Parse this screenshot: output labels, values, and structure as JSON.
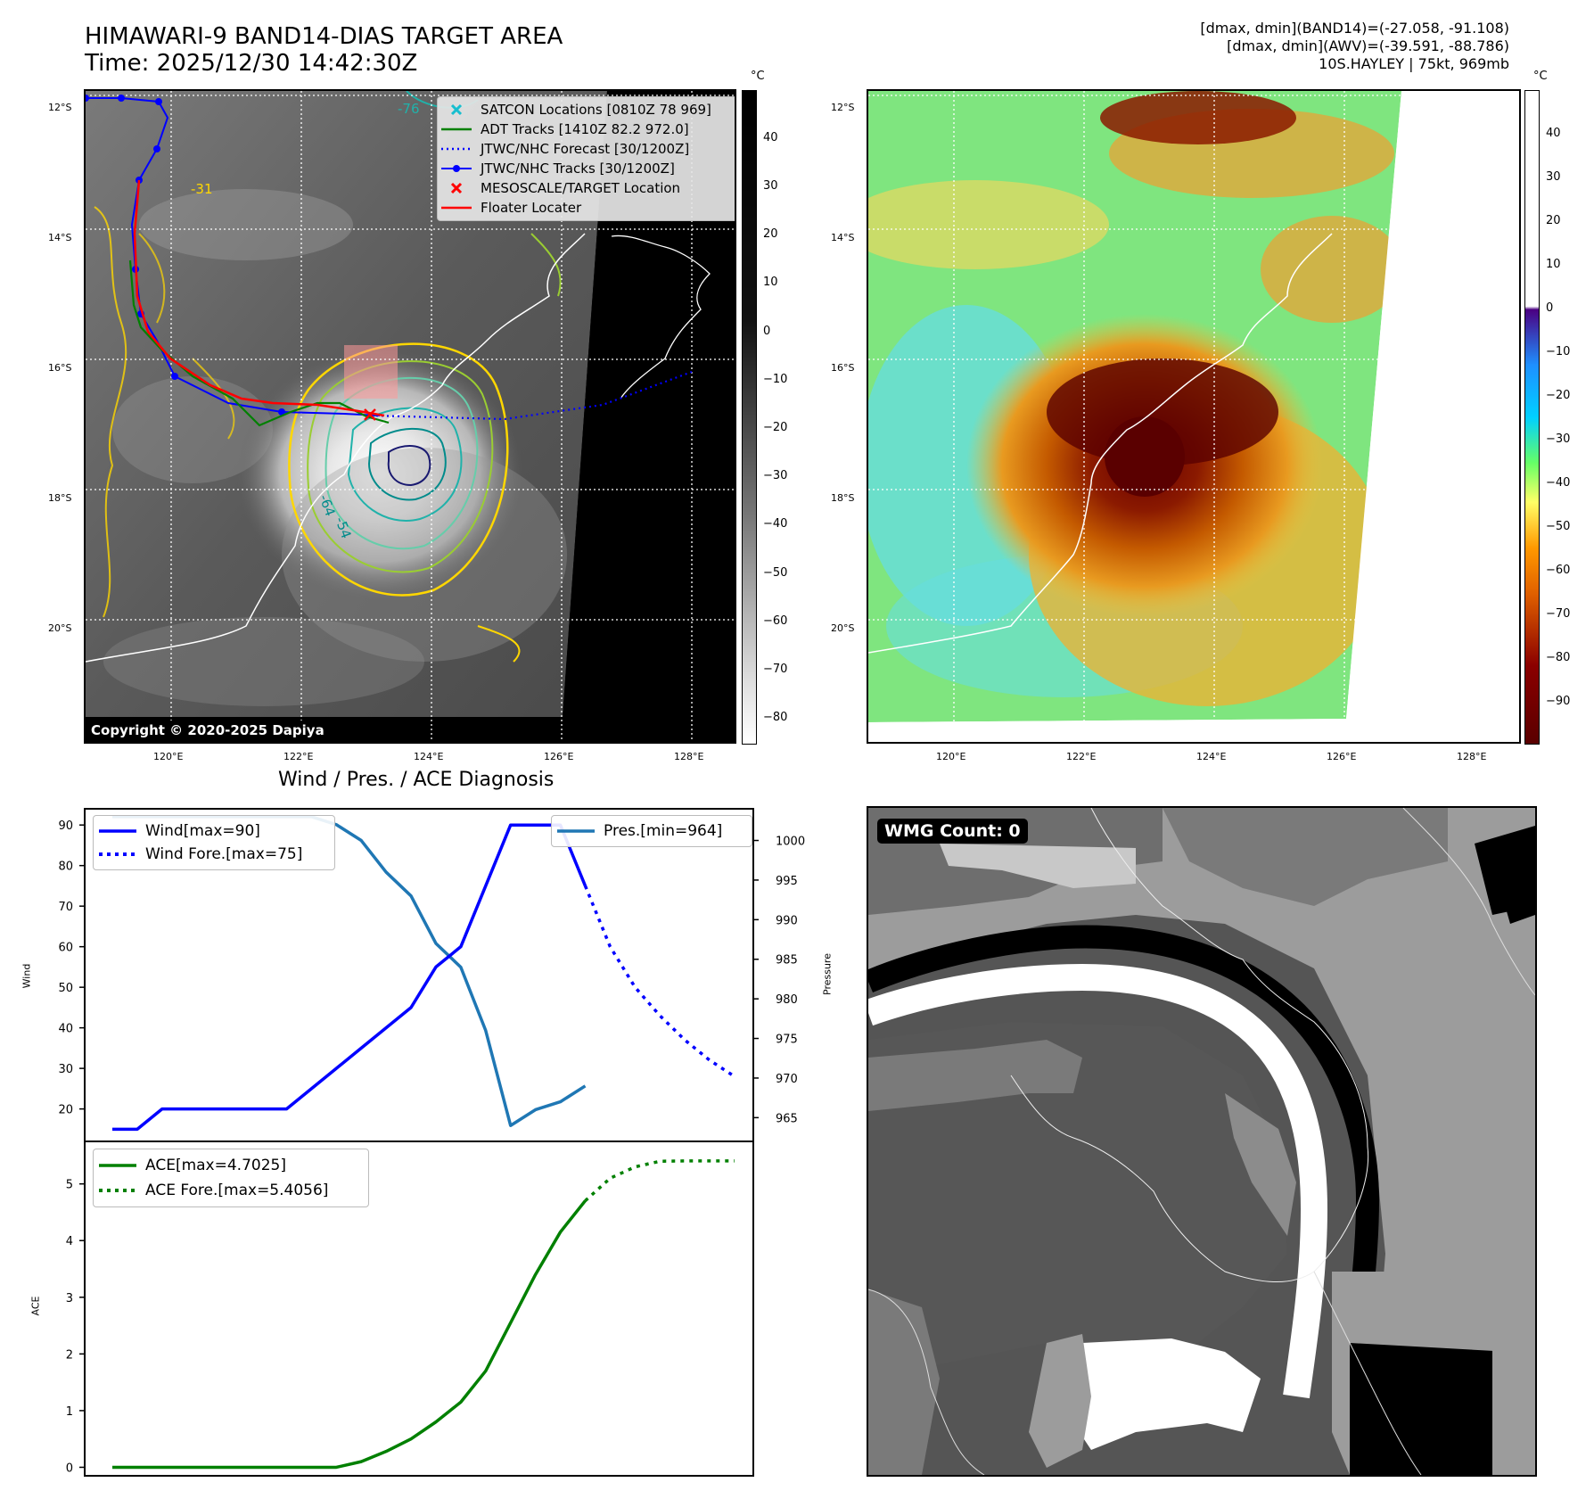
{
  "header": {
    "title_line1": "HIMAWARI-9 BAND14-DIAS TARGET AREA",
    "title_line2": "Time: 2025/12/30 14:42:30Z",
    "stats_line1": "[dmax, dmin](BAND14)=(-27.058, -91.108)",
    "stats_line2": "[dmax, dmin](AWV)=(-39.591, -88.786)",
    "stats_line3": "10S.HAYLEY | 75kt, 969mb"
  },
  "map": {
    "lat_labels": [
      "12°S",
      "14°S",
      "16°S",
      "18°S",
      "20°S"
    ],
    "lon_labels": [
      "120°E",
      "122°E",
      "124°E",
      "126°E",
      "128°E"
    ],
    "copyright": "Copyright © 2020-2025 Dapiya",
    "contour_labels": [
      "-76",
      "-31",
      "-64",
      "-54"
    ],
    "legend": [
      {
        "label": "SATCON Locations [0810Z 78 969]",
        "color": "#17becf",
        "symbol": "x"
      },
      {
        "label": "ADT Tracks [1410Z 82.2 972.0]",
        "color": "#008000",
        "symbol": "line"
      },
      {
        "label": "JTWC/NHC Forecast [30/1200Z]",
        "color": "#0000ff",
        "symbol": "dotted"
      },
      {
        "label": "JTWC/NHC Tracks [30/1200Z]",
        "color": "#0000ff",
        "symbol": "line-dot"
      },
      {
        "label": "MESOSCALE/TARGET Location",
        "color": "#ff0000",
        "symbol": "x"
      },
      {
        "label": "Floater Locater",
        "color": "#ff0000",
        "symbol": "line"
      }
    ]
  },
  "colorbar1": {
    "unit": "°C",
    "ticks": [
      "40",
      "30",
      "20",
      "10",
      "0",
      "−10",
      "−20",
      "−30",
      "−40",
      "−50",
      "−60",
      "−70",
      "−80"
    ]
  },
  "colorbar2": {
    "unit": "°C",
    "ticks": [
      "40",
      "30",
      "20",
      "10",
      "0",
      "−10",
      "−20",
      "−30",
      "−40",
      "−50",
      "−60",
      "−70",
      "−80",
      "−90"
    ]
  },
  "wmg": {
    "label": "WMG Count: 0"
  },
  "chart_data": [
    {
      "type": "line",
      "title": "Wind / Pres. / ACE Diagnosis",
      "ylabel": "Wind",
      "ylabel_right": "Pressure",
      "ylim": [
        12,
        94
      ],
      "ylim_right": [
        962,
        1004
      ],
      "y_ticks": [
        20,
        30,
        40,
        50,
        60,
        70,
        80,
        90
      ],
      "y_ticks_right": [
        965,
        970,
        975,
        980,
        985,
        990,
        995,
        1000
      ],
      "series": [
        {
          "name": "Wind[max=90]",
          "color": "#0000ff",
          "style": "solid",
          "x": [
            0,
            1,
            2,
            3,
            4,
            5,
            6,
            7,
            8,
            9,
            10,
            11,
            12,
            13,
            14,
            15,
            16,
            17,
            18,
            19
          ],
          "values": [
            15,
            15,
            20,
            20,
            20,
            20,
            20,
            20,
            25,
            30,
            35,
            40,
            45,
            55,
            60,
            75,
            90,
            90,
            90,
            75
          ]
        },
        {
          "name": "Wind Fore.[max=75]",
          "color": "#0000ff",
          "style": "dotted",
          "x": [
            19,
            20,
            21,
            22,
            23,
            24,
            25
          ],
          "values": [
            75,
            60,
            50,
            43,
            37,
            32,
            28
          ]
        },
        {
          "name": "Pres.[min=964]",
          "color": "#1f77b4",
          "style": "solid",
          "axis": "right",
          "x": [
            0,
            1,
            2,
            3,
            4,
            5,
            6,
            7,
            8,
            9,
            10,
            11,
            12,
            13,
            14,
            15,
            16,
            17,
            18,
            19
          ],
          "values": [
            1003,
            1003,
            1003,
            1003,
            1003,
            1003,
            1003,
            1003,
            1003,
            1002,
            1000,
            996,
            993,
            987,
            984,
            976,
            964,
            966,
            967,
            969
          ]
        }
      ]
    },
    {
      "type": "line",
      "ylabel": "ACE",
      "ylim": [
        -0.15,
        5.75
      ],
      "y_ticks": [
        0,
        1,
        2,
        3,
        4,
        5
      ],
      "series": [
        {
          "name": "ACE[max=4.7025]",
          "color": "#008000",
          "style": "solid",
          "x": [
            0,
            1,
            2,
            3,
            4,
            5,
            6,
            7,
            8,
            9,
            10,
            11,
            12,
            13,
            14,
            15,
            16,
            17,
            18,
            19
          ],
          "values": [
            0,
            0,
            0,
            0,
            0,
            0,
            0,
            0,
            0,
            0,
            0.1,
            0.28,
            0.5,
            0.8,
            1.15,
            1.7,
            2.55,
            3.4,
            4.15,
            4.7025
          ]
        },
        {
          "name": "ACE Fore.[max=5.4056]",
          "color": "#008000",
          "style": "dotted",
          "x": [
            19,
            20,
            21,
            22,
            23,
            24,
            25
          ],
          "values": [
            4.7025,
            5.1,
            5.3,
            5.4,
            5.4056,
            5.4056,
            5.4056
          ]
        }
      ]
    }
  ]
}
